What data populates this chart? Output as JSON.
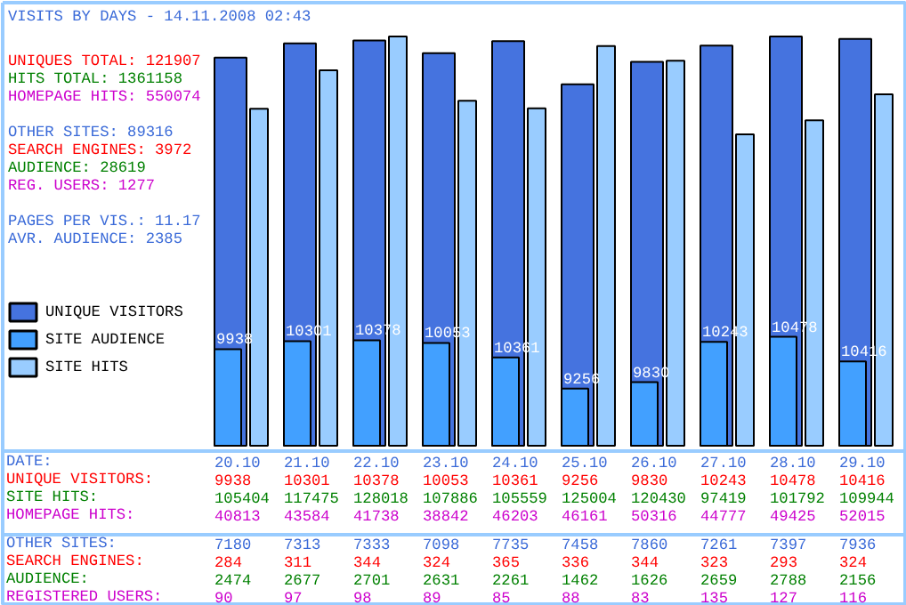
{
  "chart_data": {
    "type": "bar",
    "title": "VISITS BY DAYS - 14.11.2008 02:43",
    "categories": [
      "20.10",
      "21.10",
      "22.10",
      "23.10",
      "24.10",
      "25.10",
      "26.10",
      "27.10",
      "28.10",
      "29.10"
    ],
    "annotations": [
      "UNIQUES TOTAL: 121907",
      "HITS TOTAL: 1361158",
      "HOMEPAGE HITS: 550074",
      "OTHER SITES: 89316",
      "SEARCH ENGINES: 3972",
      "AUDIENCE: 28619",
      "REG. USERS: 1277",
      "PAGES PER VIS.: 11.17",
      "AVR. AUDIENCE: 2385",
      "DATE:",
      "UNIQUE VISITORS:",
      "SITE HITS:",
      "HOMEPAGE HITS:",
      "OTHER SITES:",
      "SEARCH ENGINES:",
      "AUDIENCE:",
      "REGISTERED USERS:"
    ],
    "series": [
      {
        "type": "other",
        "values": [
          null,
          null,
          null,
          null,
          null,
          null,
          null,
          null,
          null,
          null
        ],
        "value_labels": [
          "9938",
          "10301",
          "10378",
          "10053",
          "10361",
          "9256",
          "9830",
          "10243",
          "10478",
          "10416"
        ]
      },
      {
        "name": "SITE HITS",
        "color": "#99ccff",
        "axis": "y2",
        "values": [
          105404,
          117475,
          128018,
          107886,
          105559,
          125004,
          120430,
          97419,
          101792,
          109944
        ]
      },
      {
        "type": "other",
        "values": [
          null,
          null,
          null,
          null,
          null,
          null,
          null,
          null,
          null,
          null
        ],
        "value_labels": [
          "40813",
          "43584",
          "41738",
          "38842",
          "46203",
          "46161",
          "50316",
          "44777",
          "49425",
          "52015"
        ]
      },
      {
        "type": "other",
        "values": [
          null,
          null,
          null,
          null,
          null,
          null,
          null,
          null,
          null,
          null
        ],
        "value_labels": [
          "7180",
          "7313",
          "7333",
          "7098",
          "7735",
          "7458",
          "7860",
          "7261",
          "7397",
          "7936"
        ]
      },
      {
        "type": "other",
        "values": [
          null,
          null,
          null,
          null,
          null,
          null,
          null,
          null,
          null,
          null
        ],
        "value_labels": [
          "284",
          "311",
          "344",
          "324",
          "365",
          "336",
          "344",
          "323",
          "293",
          "324"
        ]
      },
      {
        "name": "SITE AUDIENCE",
        "color": "#42a0ff",
        "values": [
          2474,
          2677,
          2701,
          2631,
          2261,
          1462,
          1626,
          2659,
          2788,
          2156
        ]
      },
      {
        "type": "other",
        "values": [
          null,
          null,
          null,
          null,
          null,
          null,
          null,
          null,
          null,
          null
        ],
        "value_labels": [
          "90",
          "97",
          "98",
          "89",
          "85",
          "88",
          "83",
          "135",
          "127",
          "116"
        ]
      },
      {
        "name": "UNIQUE VISITORS",
        "color": "#4573df",
        "values": [
          9938,
          10301,
          10378,
          10053,
          10361,
          9256,
          9830,
          10243,
          10478,
          10416
        ],
        "value_labels": [
          "9938",
          "10301",
          "10378",
          "10053",
          "10361",
          "9256",
          "9830",
          "10243",
          "10478",
          "10416"
        ]
      }
    ],
    "data_labels": true,
    "legend": "left"
  }
}
